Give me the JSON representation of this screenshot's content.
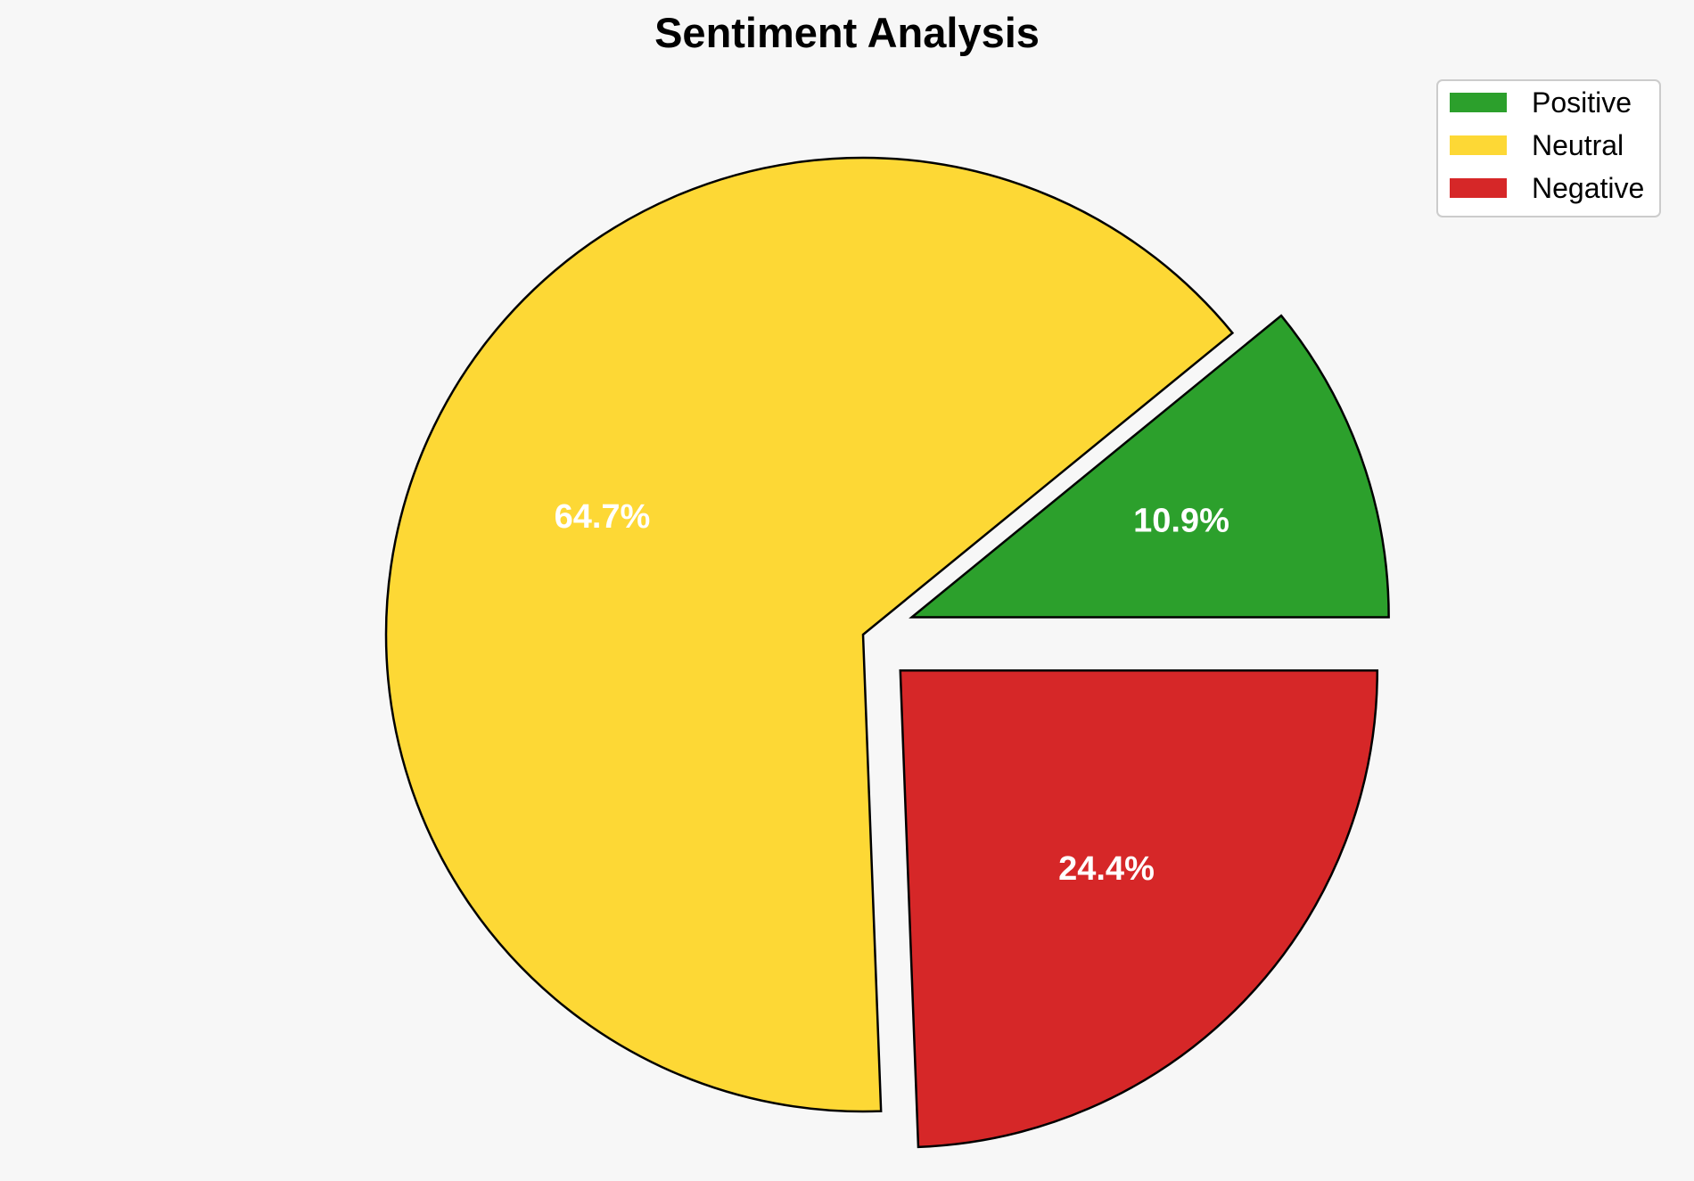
{
  "chart_data": {
    "type": "pie",
    "title": "Sentiment Analysis",
    "categories": [
      "Positive",
      "Neutral",
      "Negative"
    ],
    "values": [
      10.9,
      64.7,
      24.4
    ],
    "value_labels": [
      "10.9%",
      "64.7%",
      "24.4%"
    ],
    "colors": [
      "#2ca02c",
      "#fdd835",
      "#d62728"
    ],
    "exploded": [
      true,
      false,
      true
    ],
    "label_color": "#ffffff",
    "edge_color": "#000000",
    "legend_position": "top-right"
  }
}
